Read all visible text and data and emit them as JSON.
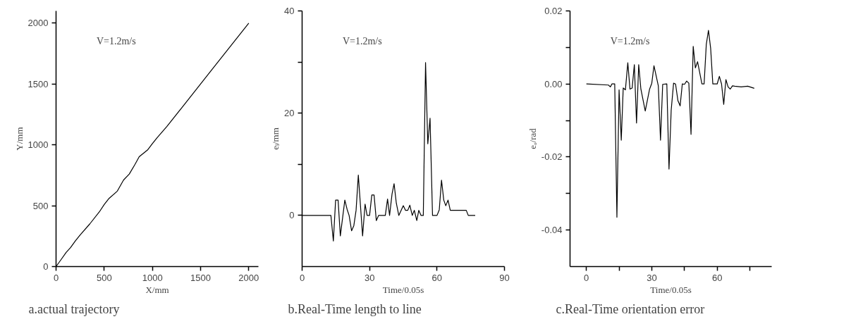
{
  "chart_data": [
    {
      "type": "line",
      "xlabel": "X/mm",
      "ylabel": "Y/mm",
      "annotations": [
        "V=1.2m/s",
        "a.actual trajectory"
      ],
      "x": [
        0,
        50,
        105,
        150,
        200,
        250,
        350,
        450,
        500,
        550,
        636,
        700,
        760,
        820,
        863,
        949,
        1000,
        1050,
        1150,
        1300,
        1450,
        1600,
        1800,
        2000
      ],
      "series": [
        {
          "color": "#000000",
          "values": [
            0,
            55,
            116,
            155,
            210,
            260,
            350,
            450,
            510,
            560,
            620,
            710,
            760,
            840,
            902,
            957,
            1010,
            1060,
            1150,
            1300,
            1450,
            1600,
            1800,
            2000
          ]
        }
      ],
      "xlim": [
        0,
        2100
      ],
      "ylim": [
        0,
        2100
      ],
      "xticks": [
        0,
        500,
        1000,
        1500,
        2000
      ],
      "yticks": [
        0,
        500,
        1000,
        1500,
        2000
      ],
      "grid": false
    },
    {
      "type": "line",
      "xlabel": "Time/0.05s",
      "ylabel": "eₗ/mm",
      "annotations": [
        "V=1.2m/s",
        "b.Real-Time length to line"
      ],
      "x": [
        0,
        12.8,
        13.9,
        14.9,
        16,
        17,
        19,
        20,
        20.9,
        22,
        23,
        24,
        25,
        26.9,
        28,
        28.9,
        30,
        31,
        32,
        33,
        34,
        37,
        38,
        38.9,
        40,
        40.9,
        41.9,
        43,
        45,
        46,
        47,
        47.9,
        49,
        49.9,
        51,
        51.9,
        52.9,
        53.9,
        54.9,
        55.9,
        56.9,
        58,
        60,
        61,
        62,
        63,
        63.9,
        64.9,
        65.9,
        73,
        73.9,
        77
      ],
      "series": [
        {
          "color": "#000000",
          "values": [
            0,
            0,
            -5,
            3,
            3,
            -4,
            3,
            1.2,
            0,
            -3,
            -2,
            1,
            7.9,
            -4,
            2.2,
            0,
            0,
            4,
            4,
            -1,
            0,
            0,
            3.2,
            0,
            4.2,
            6.2,
            2.4,
            0,
            1.9,
            1,
            1,
            2,
            0,
            1,
            -1,
            1,
            0,
            0,
            29.9,
            14,
            19,
            0,
            0,
            1.1,
            6.9,
            3,
            1.9,
            3,
            1,
            1,
            0,
            0
          ]
        }
      ],
      "xlim": [
        0,
        90
      ],
      "ylim": [
        -10,
        40
      ],
      "xticks": [
        0,
        30,
        60,
        90
      ],
      "yticks": [
        0,
        {
          "value": 10,
          "label": null
        },
        20,
        {
          "value": 30,
          "label": null
        },
        40
      ],
      "grid": false
    },
    {
      "type": "line",
      "xlabel": "Time/0.05s",
      "ylabel": "eₐ/rad",
      "annotations": [
        "V=1.2m/s",
        "c.Real-Time orientation error"
      ],
      "x": [
        0,
        10.1,
        11,
        11.7,
        13,
        14,
        15,
        16,
        16.9,
        17.9,
        19,
        20,
        21,
        22,
        23,
        24,
        25,
        27,
        29,
        30,
        31,
        33,
        34,
        35,
        36.9,
        37.9,
        38.9,
        40,
        40.9,
        42,
        43,
        44,
        45,
        46,
        47,
        48,
        49,
        50,
        51,
        53,
        54,
        55,
        56,
        57,
        58,
        60,
        61,
        62,
        63,
        64,
        65,
        66,
        67,
        68,
        71,
        74,
        77
      ],
      "series": [
        {
          "color": "#000000",
          "values": [
            0,
            -0.0003,
            -0.0008,
            0,
            0,
            -0.0365,
            -0.0016,
            -0.0154,
            -0.0011,
            -0.0016,
            0.0058,
            -0.0014,
            -0.0011,
            0.0053,
            -0.0107,
            0.0053,
            -0.0014,
            -0.0074,
            -0.0014,
            0.0002,
            0.005,
            -0.0005,
            -0.0154,
            -0.0001,
            0,
            -0.0233,
            -0.0072,
            0.0002,
            0,
            -0.0046,
            -0.006,
            0,
            -0.0001,
            0.0008,
            0.0002,
            -0.0138,
            0.0103,
            0.0044,
            0.0061,
            0,
            0,
            0.0108,
            0.0147,
            0.0098,
            0,
            0,
            0.0021,
            0,
            -0.0056,
            0.0012,
            -0.0008,
            -0.0014,
            -0.0005,
            -0.0006,
            -0.0008,
            -0.0006,
            -0.0012
          ]
        }
      ],
      "xlim": [
        -7.5,
        85
      ],
      "ylim": [
        -0.05,
        0.02
      ],
      "xticks": [
        0,
        {
          "value": 15,
          "label": null
        },
        30,
        {
          "value": 45,
          "label": null
        },
        60,
        {
          "value": 75,
          "label": null
        }
      ],
      "yticks": [
        {
          "value": -0.04,
          "label": "-0.04"
        },
        {
          "value": -0.03,
          "label": null
        },
        {
          "value": -0.02,
          "label": "-0.02"
        },
        {
          "value": -0.01,
          "label": null
        },
        {
          "value": 0,
          "label": "0.00"
        },
        {
          "value": 0.01,
          "label": null
        },
        {
          "value": 0.02,
          "label": "0.02"
        }
      ],
      "grid": false
    }
  ]
}
